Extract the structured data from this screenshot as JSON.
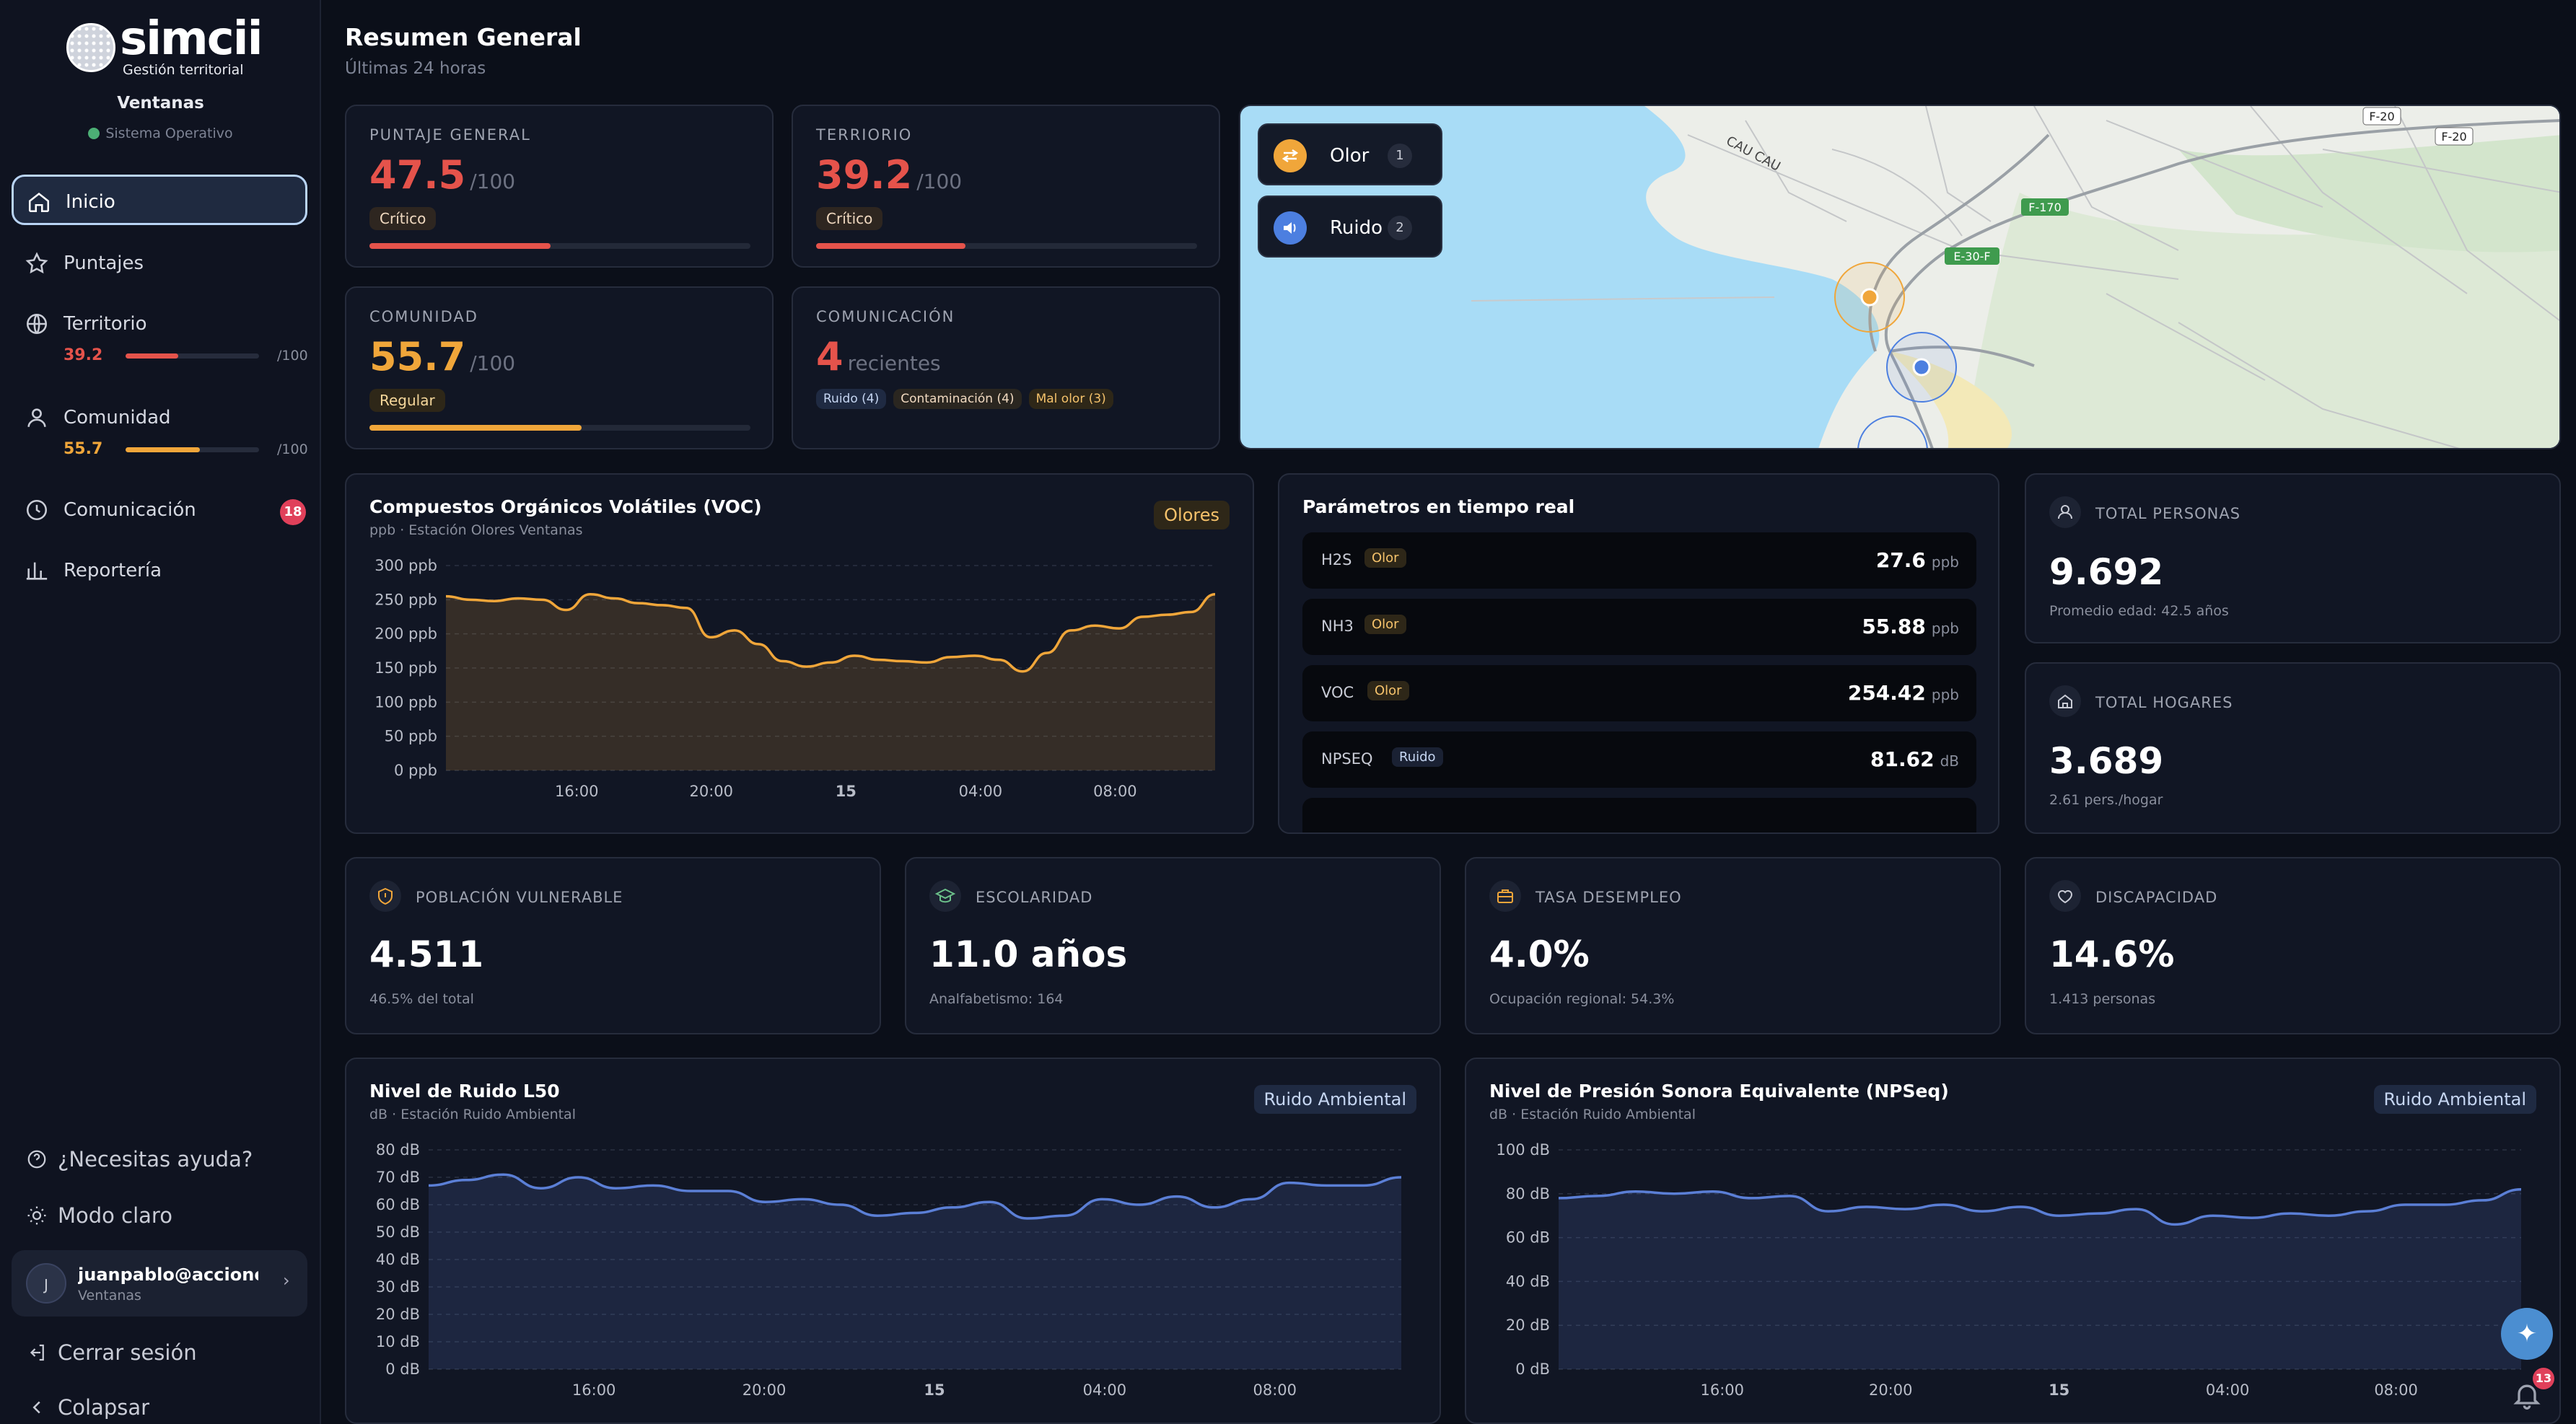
{
  "brand": {
    "name": "simcii",
    "tagline": "Gestión territorial"
  },
  "site": {
    "name": "Ventanas",
    "status": "Sistema Operativo"
  },
  "nav": {
    "inicio": "Inicio",
    "puntajes": "Puntajes",
    "territorio": {
      "label": "Territorio",
      "score": "39.2",
      "max": "/100",
      "fraction": 0.392
    },
    "comunidad": {
      "label": "Comunidad",
      "score": "55.7",
      "max": "/100",
      "fraction": 0.557
    },
    "comunicacion": {
      "label": "Comunicación",
      "badge": "18"
    },
    "reporteria": "Reportería"
  },
  "sidebar_bottom": {
    "help": "¿Necesitas ayuda?",
    "theme": "Modo claro",
    "logout": "Cerrar sesión",
    "collapse": "Colapsar",
    "user": {
      "initial": "J",
      "email": "juanpablo@accione...",
      "site": "Ventanas"
    }
  },
  "header": {
    "title": "Resumen General",
    "subtitle": "Últimas 24 horas"
  },
  "scores": {
    "general": {
      "label": "PUNTAJE GENERAL",
      "value": "47.5",
      "max": "/100",
      "status": "Crítico",
      "fraction": 0.475,
      "color": "#e5534b"
    },
    "territorio": {
      "label": "TERRIORIO",
      "value": "39.2",
      "max": "/100",
      "status": "Crítico",
      "fraction": 0.392,
      "color": "#e5534b"
    },
    "comunidad": {
      "label": "COMUNIDAD",
      "value": "55.7",
      "max": "/100",
      "status": "Regular",
      "fraction": 0.557,
      "color": "#f0a63a"
    },
    "comunicacion": {
      "label": "COMUNICACIÓN",
      "value": "4",
      "unit": "recientes",
      "tags": [
        "Ruido (4)",
        "Contaminación (4)",
        "Mal olor (3)"
      ]
    }
  },
  "map": {
    "layers": [
      {
        "label": "Olor",
        "count": "1",
        "color": "#f0a63a"
      },
      {
        "label": "Ruido",
        "count": "2",
        "color": "#4c7fe0"
      }
    ],
    "labels": [
      "CAU CAU",
      "F-20",
      "F-20",
      "F-170",
      "E-30-F"
    ]
  },
  "voc": {
    "title": "Compuestos Orgánicos Volátiles (VOC)",
    "subtitle": "ppb · Estación Olores Ventanas",
    "badge": "Olores"
  },
  "params": {
    "title": "Parámetros en tiempo real",
    "rows": [
      {
        "name": "H2S",
        "tag": "Olor",
        "value": "27.6",
        "unit": "ppb"
      },
      {
        "name": "NH3",
        "tag": "Olor",
        "value": "55.88",
        "unit": "ppb"
      },
      {
        "name": "VOC",
        "tag": "Olor",
        "value": "254.42",
        "unit": "ppb"
      },
      {
        "name": "NPSEQ",
        "tag": "Ruido",
        "value": "81.62",
        "unit": "dB"
      }
    ]
  },
  "stats": {
    "personas": {
      "label": "TOTAL PERSONAS",
      "value": "9.692",
      "note": "Promedio edad: 42.5 años"
    },
    "hogares": {
      "label": "TOTAL HOGARES",
      "value": "3.689",
      "note": "2.61 pers./hogar"
    },
    "vulnerable": {
      "label": "POBLACIÓN VULNERABLE",
      "value": "4.511",
      "note": "46.5% del total"
    },
    "escolaridad": {
      "label": "ESCOLARIDAD",
      "value": "11.0 años",
      "note": "Analfabetismo: 164"
    },
    "desempleo": {
      "label": "TASA DESEMPLEO",
      "value": "4.0%",
      "note": "Ocupación regional: 54.3%"
    },
    "discapacidad": {
      "label": "DISCAPACIDAD",
      "value": "14.6%",
      "note": "1.413 personas"
    }
  },
  "l50": {
    "title": "Nivel de Ruido L50",
    "subtitle": "dB · Estación Ruido Ambiental",
    "badge": "Ruido Ambiental"
  },
  "npseq": {
    "title": "Nivel de Presión Sonora Equivalente (NPSeq)",
    "subtitle": "dB · Estación Ruido Ambiental",
    "badge": "Ruido Ambiental"
  },
  "notifications": {
    "count": "13"
  },
  "chart_data": [
    {
      "type": "area",
      "id": "voc",
      "title": "Compuestos Orgánicos Volátiles (VOC)",
      "ylabel": "ppb",
      "ylim": [
        0,
        300
      ],
      "yticks": [
        "0 ppb",
        "50 ppb",
        "100 ppb",
        "150 ppb",
        "200 ppb",
        "250 ppb",
        "300 ppb"
      ],
      "xticks": [
        "16:00",
        "20:00",
        "15",
        "04:00",
        "08:00"
      ],
      "values": [
        255,
        250,
        248,
        252,
        250,
        235,
        258,
        252,
        245,
        242,
        238,
        195,
        205,
        185,
        160,
        152,
        158,
        168,
        162,
        160,
        158,
        166,
        168,
        162,
        145,
        172,
        205,
        212,
        208,
        225,
        228,
        232,
        258
      ],
      "color": "#f0a63a"
    },
    {
      "type": "area",
      "id": "l50",
      "title": "Nivel de Ruido L50",
      "ylabel": "dB",
      "ylim": [
        0,
        80
      ],
      "yticks": [
        "0 dB",
        "10 dB",
        "20 dB",
        "30 dB",
        "40 dB",
        "50 dB",
        "60 dB",
        "70 dB",
        "80 dB"
      ],
      "xticks": [
        "16:00",
        "20:00",
        "15",
        "04:00",
        "08:00"
      ],
      "values": [
        67,
        69,
        71,
        66,
        70,
        66,
        67,
        65,
        65,
        61,
        62,
        60,
        56,
        57,
        59,
        61,
        55,
        56,
        62,
        60,
        63,
        59,
        62,
        68,
        67,
        67,
        70
      ],
      "color": "#5b7fd6"
    },
    {
      "type": "area",
      "id": "npseq",
      "title": "Nivel de Presión Sonora Equivalente (NPSeq)",
      "ylabel": "dB",
      "ylim": [
        0,
        100
      ],
      "yticks": [
        "0 dB",
        "20 dB",
        "40 dB",
        "60 dB",
        "80 dB",
        "100 dB"
      ],
      "xticks": [
        "16:00",
        "20:00",
        "15",
        "04:00",
        "08:00"
      ],
      "values": [
        78,
        79,
        81,
        80,
        81,
        78,
        79,
        72,
        74,
        73,
        75,
        72,
        74,
        70,
        71,
        73,
        66,
        70,
        69,
        71,
        70,
        72,
        75,
        75,
        77,
        82
      ],
      "color": "#5b7fd6"
    }
  ]
}
